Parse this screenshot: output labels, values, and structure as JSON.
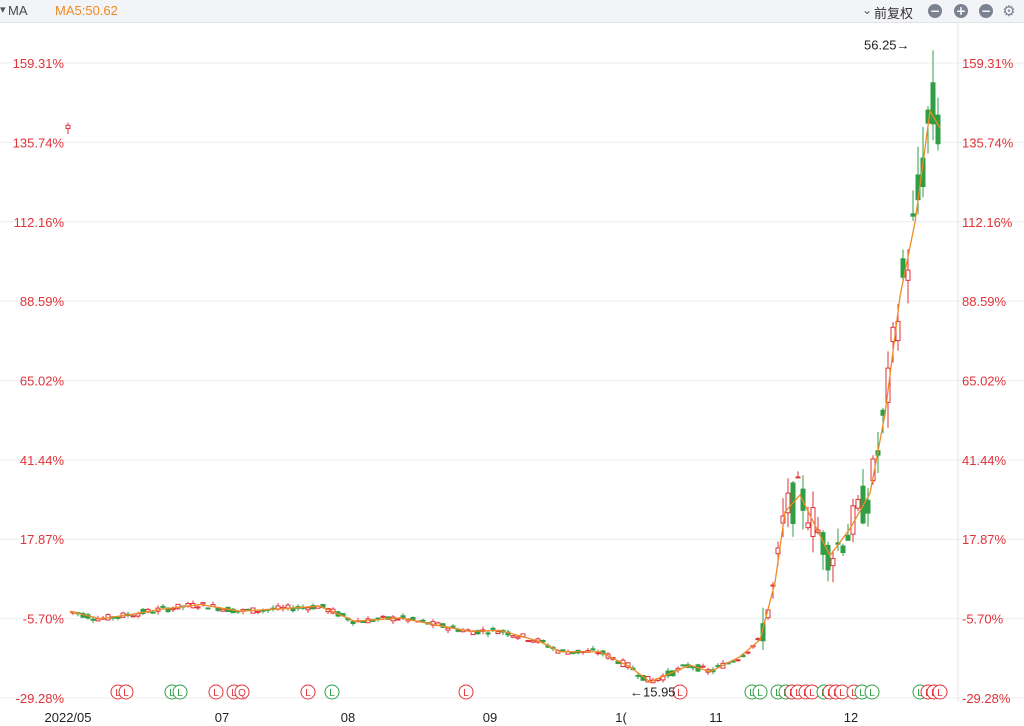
{
  "toolbar": {
    "indicator": "MA",
    "ma5": "MA5:50.62",
    "adjust_label": "前复权",
    "buttons": [
      "zoom-out",
      "zoom-in",
      "collapse",
      "settings"
    ],
    "colors": {
      "up": "#e0333a",
      "down": "#2f9e44",
      "ma5": "#f08a24"
    }
  },
  "chart_data": {
    "type": "candlestick",
    "y_axis_labels": [
      "159.31%",
      "135.74%",
      "112.16%",
      "88.59%",
      "65.02%",
      "41.44%",
      "17.87%",
      "-5.70%",
      "-29.28%"
    ],
    "y_axis_values": [
      159.31,
      135.74,
      112.16,
      88.59,
      65.02,
      41.44,
      17.87,
      -5.7,
      -29.28
    ],
    "x_axis_labels": [
      "2022/05",
      "07",
      "08",
      "09",
      "1(",
      "11",
      "12"
    ],
    "annotations": [
      {
        "text": "56.25",
        "kind": "high",
        "pct": 164.8
      },
      {
        "text": "15.95",
        "kind": "low",
        "pct": -27.0
      }
    ],
    "event_markers": [
      {
        "text": "L",
        "color": "#e0333a"
      },
      {
        "text": "L",
        "color": "#e0333a"
      },
      {
        "text": "L",
        "color": "#2f9e44"
      },
      {
        "text": "L",
        "color": "#2f9e44"
      },
      {
        "text": "L",
        "color": "#e0333a"
      },
      {
        "text": "L",
        "color": "#e0333a"
      },
      {
        "text": "Q",
        "color": "#e0333a"
      },
      {
        "text": "L",
        "color": "#e0333a"
      },
      {
        "text": "L",
        "color": "#2f9e44"
      },
      {
        "text": "L",
        "color": "#e0333a"
      },
      {
        "text": "L",
        "color": "#e0333a"
      },
      {
        "text": "L",
        "color": "#2f9e44"
      },
      {
        "text": "L",
        "color": "#2f9e44"
      },
      {
        "text": "L",
        "color": "#2f9e44"
      },
      {
        "text": "L",
        "color": "#2f9e44"
      },
      {
        "text": "L",
        "color": "#e0333a"
      },
      {
        "text": "L",
        "color": "#e0333a"
      },
      {
        "text": "L",
        "color": "#e0333a"
      },
      {
        "text": "L",
        "color": "#e0333a"
      },
      {
        "text": "L",
        "color": "#2f9e44"
      },
      {
        "text": "L",
        "color": "#e0333a"
      },
      {
        "text": "L",
        "color": "#e0333a"
      },
      {
        "text": "L",
        "color": "#e0333a"
      },
      {
        "text": "L",
        "color": "#e0333a"
      },
      {
        "text": "L",
        "color": "#2f9e44"
      },
      {
        "text": "L",
        "color": "#2f9e44"
      },
      {
        "text": "L",
        "color": "#2f9e44"
      },
      {
        "text": "L",
        "color": "#e0333a"
      },
      {
        "text": "L",
        "color": "#e0333a"
      },
      {
        "text": "L",
        "color": "#e0333a"
      }
    ],
    "ma5_key_points": [
      {
        "pct": -3.5
      },
      {
        "pct": -5.8
      },
      {
        "pct": -4.5
      },
      {
        "pct": -3.0
      },
      {
        "pct": -1.5
      },
      {
        "pct": -3.5
      },
      {
        "pct": -2.8
      },
      {
        "pct": -2.0
      },
      {
        "pct": -6.5
      },
      {
        "pct": -5.5
      },
      {
        "pct": -7.8
      },
      {
        "pct": -9.5
      },
      {
        "pct": -9.2
      },
      {
        "pct": -12.5
      },
      {
        "pct": -15.5
      },
      {
        "pct": -15.6
      },
      {
        "pct": -20.0
      },
      {
        "pct": -24.5
      },
      {
        "pct": -19.5
      },
      {
        "pct": -21.5
      },
      {
        "pct": -17.0
      },
      {
        "pct": -12.0
      },
      {
        "pct": 5.0
      },
      {
        "pct": 26.0
      },
      {
        "pct": 31.0
      },
      {
        "pct": 22.0
      },
      {
        "pct": 13.0
      },
      {
        "pct": 21.0
      },
      {
        "pct": 31.5
      },
      {
        "pct": 55.0
      },
      {
        "pct": 90.0
      },
      {
        "pct": 112.0
      },
      {
        "pct": 145.0
      },
      {
        "pct": 140.0
      }
    ]
  }
}
